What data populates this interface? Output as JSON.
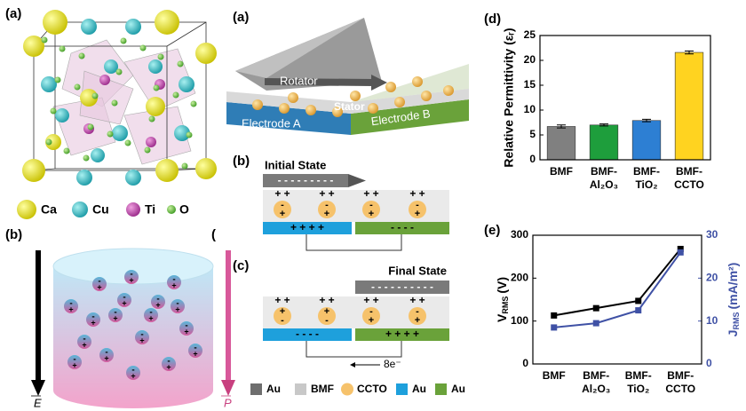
{
  "crystal": {
    "label": "(a)",
    "legend": [
      "Ca",
      "Cu",
      "Ti",
      "O"
    ]
  },
  "polarization": {
    "label": "(b)",
    "fragment": "(",
    "field": "E",
    "polarization": "P",
    "neg": "-",
    "pos": "+"
  },
  "teng": {
    "label": "(a)",
    "rotator": "Rotator",
    "stator": "Stator",
    "electrode_a": "Electrode A",
    "electrode_b": "Electrode B"
  },
  "initial_state": {
    "label": "(b)",
    "title": "Initial State",
    "rotator_charge": "- - - - - - - - -",
    "bmf_charge": "+ +",
    "particle_neg": "-",
    "particle_pos": "+",
    "electrode_a_charge": "+ +   + +",
    "electrode_b_charge": "-  -    -  -"
  },
  "final_state": {
    "label": "(c)",
    "title": "Final State",
    "rotator_charge": "- - - - - - - - - -",
    "bmf_charge": "+ +",
    "electrode_a_charge": "-  -    -  -",
    "electrode_b_charge": "+ +   + +",
    "flow": "8e⁻"
  },
  "materials_legend": [
    "Au",
    "BMF",
    "CCTO",
    "Au",
    "Au"
  ],
  "chart_data": [
    {
      "type": "bar",
      "label": "(d)",
      "ylabel": "Relative Permittivity (εᵣ)",
      "categories": [
        "BMF",
        "BMF-Al₂O₃",
        "BMF-TiO₂",
        "BMF-CCTO"
      ],
      "values": [
        6.7,
        7.0,
        7.9,
        21.6
      ],
      "errors": [
        0.3,
        0.2,
        0.25,
        0.3
      ],
      "colors": [
        "#808080",
        "#1e9e3c",
        "#2d7fd3",
        "#ffd320"
      ],
      "ylim": [
        0,
        25
      ],
      "yticks": [
        0,
        5,
        10,
        15,
        20,
        25
      ]
    },
    {
      "type": "line",
      "label": "(e)",
      "ylabel": {
        "symbol": "V",
        "subscript": "RMS",
        "unit": "(V)"
      },
      "y2label": {
        "symbol": "J",
        "subscript": "RMS",
        "unit": "(mA/m²)"
      },
      "categories": [
        "BMF",
        "BMF-Al₂O₃",
        "BMF-TiO₂",
        "BMF-CCTO"
      ],
      "series": [
        {
          "color": "#000000",
          "values": [
            113,
            130,
            147,
            268
          ]
        },
        {
          "color": "#3f51a5",
          "axis": "y2",
          "values": [
            8.5,
            9.5,
            12.5,
            26
          ]
        }
      ],
      "ylim": [
        0,
        300
      ],
      "yticks": [
        0,
        100,
        200,
        300
      ],
      "y2lim": [
        0,
        30
      ],
      "y2ticks": [
        0,
        10,
        20,
        30
      ]
    }
  ]
}
